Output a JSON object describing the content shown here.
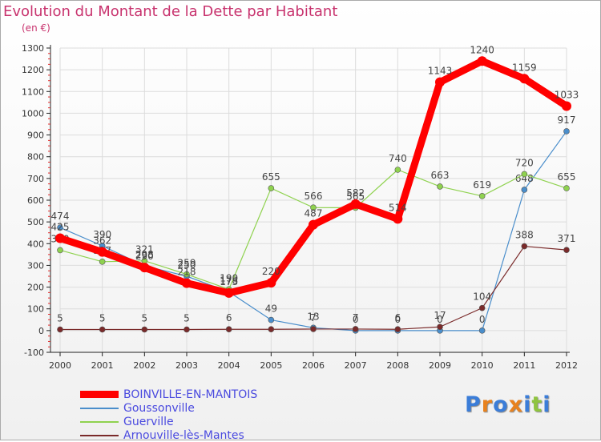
{
  "title": "Evolution du Montant de la Dette par Habitant",
  "subtitle": "(en €)",
  "logo": "Proxiti",
  "chart_data": {
    "type": "line",
    "x": [
      "2000",
      "2001",
      "2002",
      "2003",
      "2004",
      "2005",
      "2006",
      "2007",
      "2008",
      "2009",
      "2010",
      "2011",
      "2012"
    ],
    "ylim": [
      -100,
      1300
    ],
    "yticks": [
      -100,
      0,
      100,
      200,
      300,
      400,
      500,
      600,
      700,
      800,
      900,
      1000,
      1100,
      1200,
      1300
    ],
    "grid": true,
    "legend_position": "bottom-left",
    "series": [
      {
        "name": "BOINVILLE-EN-MANTOIS",
        "color": "#ff0000",
        "width": 9,
        "values": [
          425,
          362,
          290,
          218,
          173,
          220,
          487,
          582,
          514,
          1143,
          1240,
          1159,
          1033
        ],
        "labels": [
          "425",
          "362",
          "290",
          "218",
          "173",
          "220",
          "487",
          "582",
          "514",
          "1143",
          "1240",
          "1159",
          "1033"
        ]
      },
      {
        "name": "Goussonville",
        "color": "#4a8ecb",
        "width": 1.2,
        "values": [
          474,
          390,
          298,
          250,
          178,
          49,
          13,
          0,
          0,
          0,
          0,
          648,
          917
        ],
        "labels": [
          "474",
          "390",
          "298",
          "250",
          "178",
          "49",
          "13",
          "0",
          "0",
          "0",
          "0",
          "648",
          "917"
        ]
      },
      {
        "name": "Guerville",
        "color": "#8fd24f",
        "width": 1.2,
        "values": [
          370,
          317,
          321,
          259,
          190,
          655,
          566,
          565,
          740,
          663,
          619,
          720,
          655
        ],
        "labels": [
          "370",
          "317",
          "321",
          "259",
          "190",
          "655",
          "566",
          "565",
          "740",
          "663",
          "619",
          "720",
          "655"
        ]
      },
      {
        "name": "Arnouville-lès-Mantes",
        "color": "#7a2a2a",
        "width": 1.2,
        "values": [
          5,
          5,
          5,
          5,
          6,
          6,
          7,
          7,
          6,
          17,
          104,
          388,
          371
        ],
        "labels": [
          "5",
          "5",
          "5",
          "5",
          "6",
          "",
          "7",
          "7",
          "6",
          "17",
          "104",
          "388",
          "371"
        ]
      }
    ]
  }
}
